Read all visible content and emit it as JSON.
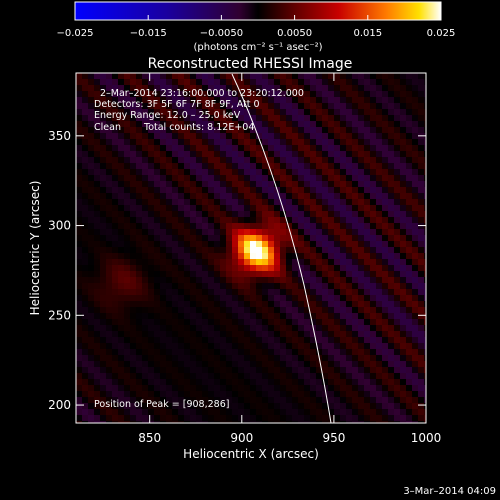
{
  "colorbar": {
    "ticks": [
      "−0.025",
      "−0.015",
      "−0.0050",
      "0.0050",
      "0.015",
      "0.025"
    ],
    "range": [
      -0.025,
      0.025
    ],
    "unit_label": "(photons cm⁻² s⁻¹ asec⁻²)"
  },
  "chart_data": {
    "type": "heatmap",
    "title": "Reconstructed RHESSI Image",
    "xlabel": "Heliocentric X (arcsec)",
    "ylabel": "Heliocentric Y (arcsec)",
    "xlim": [
      810,
      1000
    ],
    "ylim": [
      190,
      385
    ],
    "x_ticks": [
      "850",
      "900",
      "950",
      "1000"
    ],
    "x_tick_values": [
      850,
      900,
      950,
      1000
    ],
    "y_ticks": [
      "200",
      "250",
      "300",
      "350"
    ],
    "y_tick_values": [
      200,
      250,
      300,
      350
    ],
    "peak": {
      "x": 908,
      "y": 286,
      "value": 0.025
    },
    "secondary_source": {
      "x": 835,
      "y": 268,
      "value": 0.012
    },
    "annotations": {
      "time_range": "2–Mar–2014 23:16:00.000 to 23:20:12.000",
      "detectors": "Detectors: 3F 5F 6F 7F 8F 9F, Att 0",
      "energy_range": "Energy Range: 12.0 – 25.0 keV",
      "clean": "Clean",
      "total_counts": "Total counts: 8.12E+04",
      "peak_position": "Position of Peak = [908,286]"
    }
  },
  "footer": {
    "date": "3–Mar–2014 04:09"
  }
}
